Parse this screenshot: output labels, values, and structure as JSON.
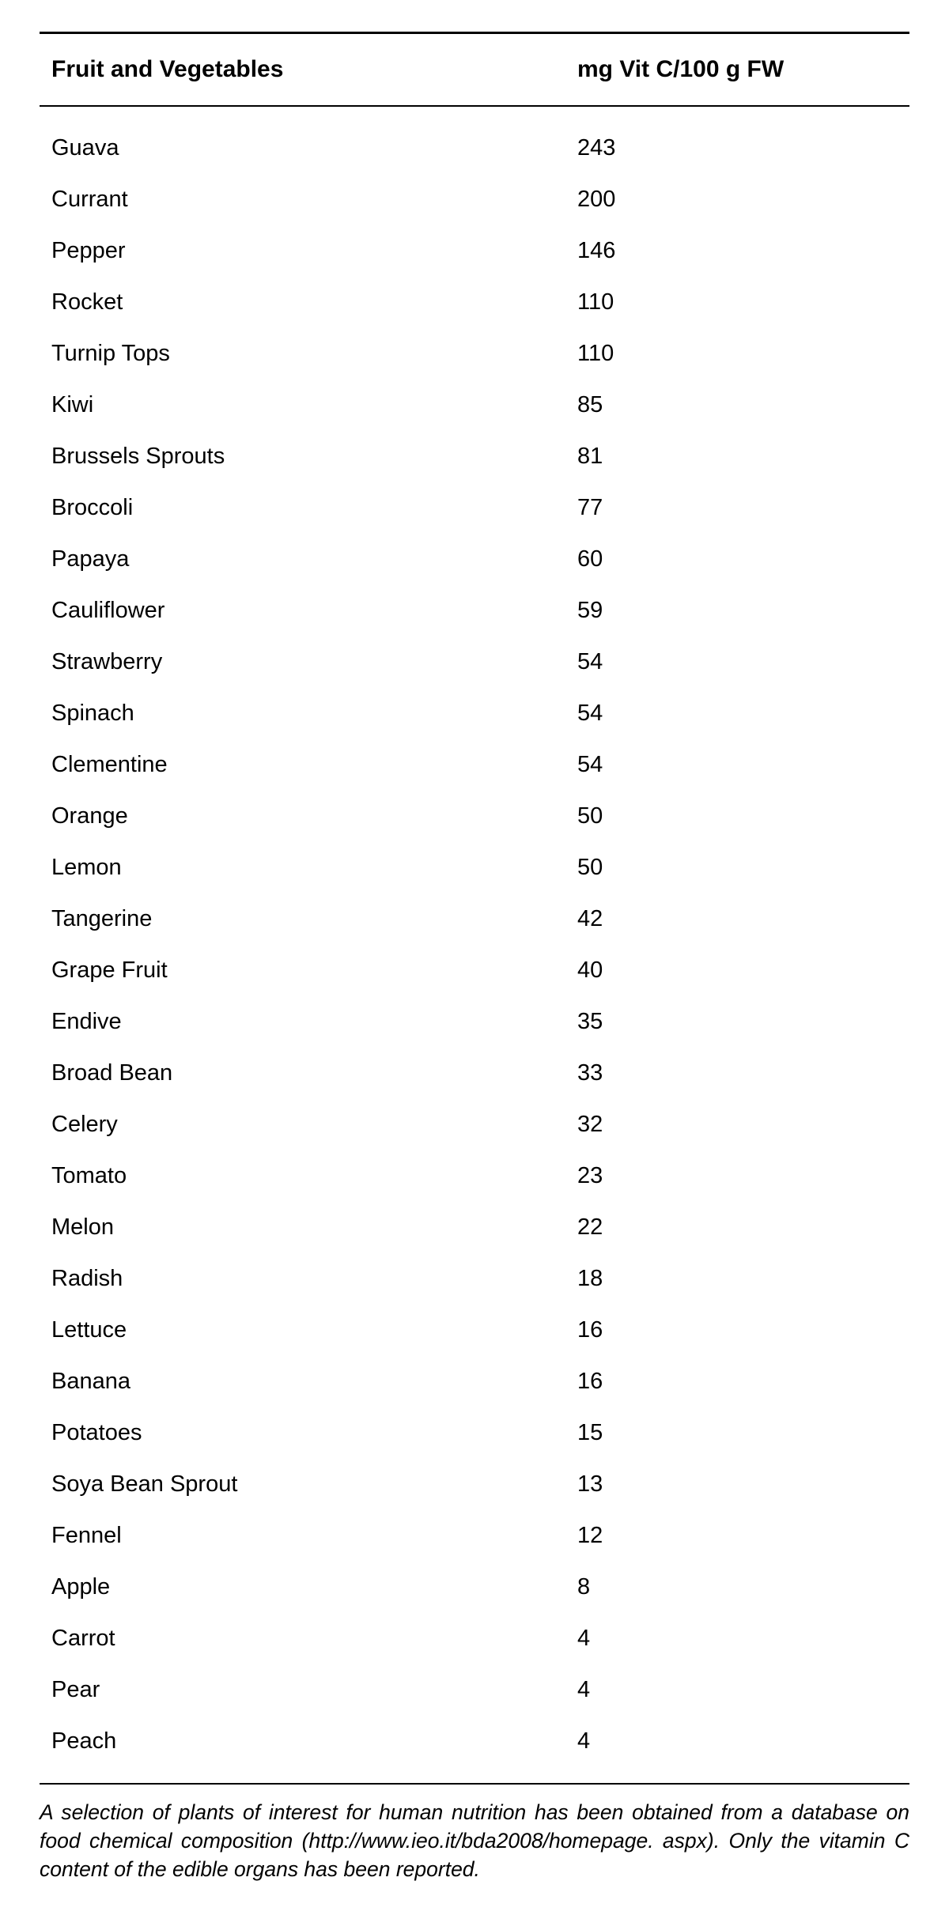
{
  "table": {
    "type": "table",
    "columns": [
      {
        "label": "Fruit and Vegetables",
        "align": "left"
      },
      {
        "label": "mg Vit C/100 g FW",
        "align": "left"
      }
    ],
    "rows": [
      {
        "name": "Guava",
        "value": "243"
      },
      {
        "name": "Currant",
        "value": "200"
      },
      {
        "name": "Pepper",
        "value": "146"
      },
      {
        "name": "Rocket",
        "value": "110"
      },
      {
        "name": "Turnip Tops",
        "value": "110"
      },
      {
        "name": "Kiwi",
        "value": "85"
      },
      {
        "name": "Brussels Sprouts",
        "value": "81"
      },
      {
        "name": "Broccoli",
        "value": "77"
      },
      {
        "name": "Papaya",
        "value": "60"
      },
      {
        "name": "Cauliflower",
        "value": "59"
      },
      {
        "name": "Strawberry",
        "value": "54"
      },
      {
        "name": "Spinach",
        "value": "54"
      },
      {
        "name": "Clementine",
        "value": "54"
      },
      {
        "name": "Orange",
        "value": "50"
      },
      {
        "name": "Lemon",
        "value": "50"
      },
      {
        "name": "Tangerine",
        "value": "42"
      },
      {
        "name": "Grape Fruit",
        "value": "40"
      },
      {
        "name": "Endive",
        "value": "35"
      },
      {
        "name": "Broad Bean",
        "value": "33"
      },
      {
        "name": "Celery",
        "value": "32"
      },
      {
        "name": "Tomato",
        "value": "23"
      },
      {
        "name": "Melon",
        "value": "22"
      },
      {
        "name": "Radish",
        "value": "18"
      },
      {
        "name": "Lettuce",
        "value": "16"
      },
      {
        "name": "Banana",
        "value": "16"
      },
      {
        "name": "Potatoes",
        "value": "15"
      },
      {
        "name": "Soya Bean Sprout",
        "value": "13"
      },
      {
        "name": "Fennel",
        "value": "12"
      },
      {
        "name": "Apple",
        "value": "8"
      },
      {
        "name": "Carrot",
        "value": "4"
      },
      {
        "name": "Pear",
        "value": "4"
      },
      {
        "name": "Peach",
        "value": "4"
      }
    ],
    "caption": "A selection of plants of interest for human nutrition has been obtained from a database on food chemical composition (http://www.ieo.it/bda2008/homepage. aspx). Only the vitamin C content of the edible organs has been reported.",
    "styling": {
      "background_color": "#ffffff",
      "text_color": "#000000",
      "border_color": "#000000",
      "header_fontsize": 30,
      "header_fontweight": "bold",
      "cell_fontsize": 29,
      "cell_fontweight": "normal",
      "caption_fontsize": 26.5,
      "caption_fontstyle": "italic",
      "top_border_width": 3,
      "header_bottom_border_width": 2,
      "bottom_border_width": 2,
      "row_padding_vertical": 16,
      "header_padding_vertical": 28,
      "right_column_width": 420,
      "left_padding": 15
    }
  }
}
